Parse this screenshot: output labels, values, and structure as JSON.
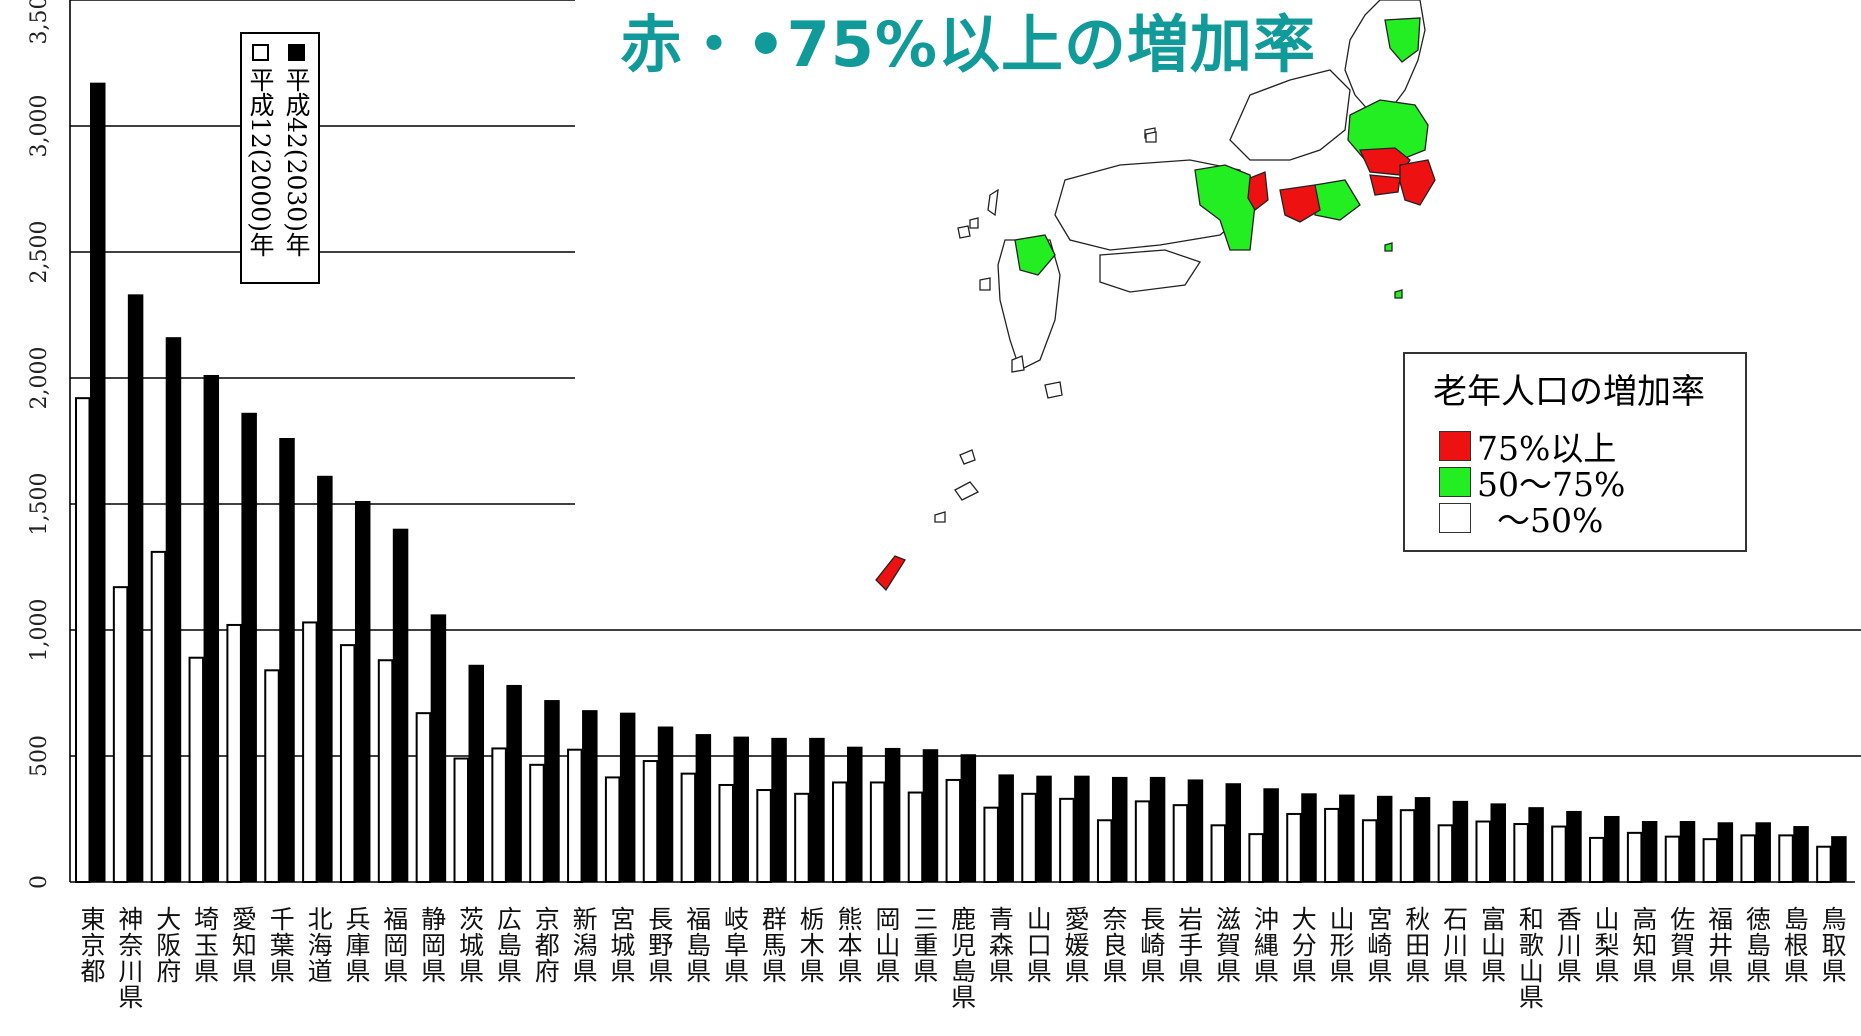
{
  "title": "赤・•75%以上の増加率",
  "chart_data": {
    "type": "bar",
    "ylim": [
      0,
      3500
    ],
    "y_ticks": [
      0,
      500,
      1000,
      1500,
      2000,
      2500,
      3000
    ],
    "y_tick_labels": [
      "0",
      "500",
      "1,000",
      "1,500",
      "2,000",
      "2,500",
      "3,000"
    ],
    "y_top_label": "3,50",
    "categories": [
      "東京都",
      "神奈川県",
      "大阪府",
      "埼玉県",
      "愛知県",
      "千葉県",
      "北海道",
      "兵庫県",
      "福岡県",
      "静岡県",
      "茨城県",
      "広島県",
      "京都府",
      "新潟県",
      "宮城県",
      "長野県",
      "福島県",
      "岐阜県",
      "群馬県",
      "栃木県",
      "熊本県",
      "岡山県",
      "三重県",
      "鹿児島県",
      "青森県",
      "山口県",
      "愛媛県",
      "奈良県",
      "長崎県",
      "岩手県",
      "滋賀県",
      "沖縄県",
      "大分県",
      "山形県",
      "宮崎県",
      "秋田県",
      "石川県",
      "富山県",
      "和歌山県",
      "香川県",
      "山梨県",
      "高知県",
      "佐賀県",
      "福井県",
      "徳島県",
      "島根県",
      "鳥取県"
    ],
    "series": [
      {
        "name": "平成12(2000)年",
        "color": "#ffffff",
        "values": [
          1920,
          1170,
          1310,
          890,
          1020,
          840,
          1030,
          940,
          880,
          670,
          490,
          530,
          465,
          525,
          415,
          480,
          430,
          385,
          365,
          350,
          395,
          395,
          355,
          405,
          295,
          350,
          330,
          245,
          320,
          305,
          225,
          190,
          270,
          290,
          245,
          285,
          225,
          240,
          230,
          220,
          175,
          195,
          180,
          170,
          185,
          185,
          140
        ]
      },
      {
        "name": "平成42(2030)年",
        "color": "#000000",
        "values": [
          3170,
          2330,
          2160,
          2010,
          1860,
          1760,
          1610,
          1510,
          1400,
          1060,
          860,
          780,
          720,
          680,
          670,
          615,
          585,
          575,
          570,
          570,
          535,
          530,
          525,
          505,
          425,
          420,
          420,
          415,
          415,
          405,
          390,
          370,
          350,
          345,
          340,
          335,
          320,
          310,
          295,
          280,
          260,
          240,
          240,
          235,
          235,
          220,
          180
        ]
      }
    ]
  },
  "legend_years": [
    "平成12(2000)年",
    "平成42(2030)年"
  ],
  "rate_legend": {
    "title": "老年人口の増加率",
    "items": [
      {
        "label": "75%以上",
        "color": "#ee1111"
      },
      {
        "label": "50〜75%",
        "color": "#22ee22"
      },
      {
        "label": "〜50%",
        "color": "#ffffff"
      }
    ]
  }
}
